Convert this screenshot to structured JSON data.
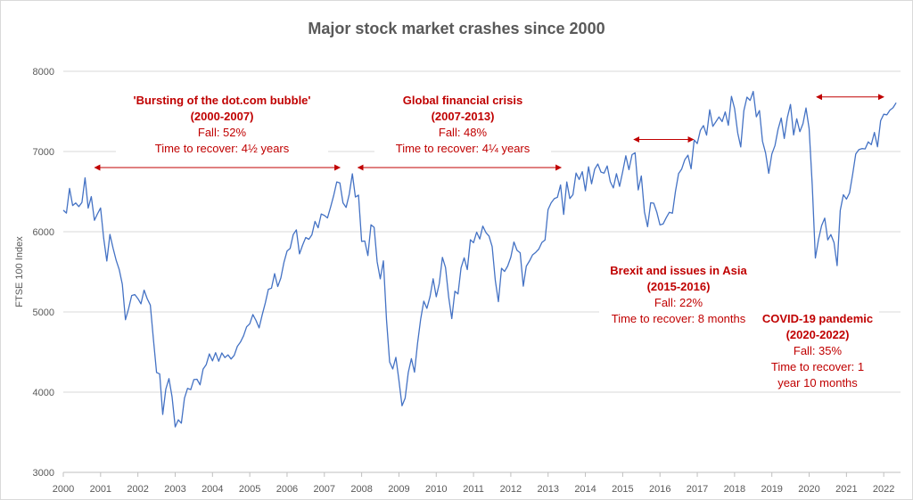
{
  "chart_data": {
    "type": "line",
    "title": "Major stock market crashes since 2000",
    "xlabel": "",
    "ylabel": "FTSE 100 Index",
    "xlim": [
      2000,
      2022.45
    ],
    "ylim": [
      3000,
      8000
    ],
    "yticks": [
      3000,
      4000,
      5000,
      6000,
      7000,
      8000
    ],
    "xticks": [
      "2000",
      "2001",
      "2002",
      "2003",
      "2004",
      "2005",
      "2006",
      "2007",
      "2008",
      "2009",
      "2010",
      "2011",
      "2012",
      "2013",
      "2014",
      "2015",
      "2016",
      "2017",
      "2018",
      "2019",
      "2020",
      "2021",
      "2022"
    ],
    "grid": "horizontal",
    "line_color": "#4472c4",
    "annotation_color": "#c00000",
    "series_start": 2000.0,
    "series_step": "monthly",
    "values": [
      6268,
      6232,
      6540,
      6327,
      6359,
      6313,
      6365,
      6672,
      6294,
      6438,
      6142,
      6222,
      6297,
      5918,
      5634,
      5967,
      5796,
      5643,
      5529,
      5345,
      4903,
      5040,
      5204,
      5217,
      5165,
      5101,
      5272,
      5166,
      5086,
      4656,
      4246,
      4227,
      3722,
      4039,
      4169,
      3940,
      3567,
      3656,
      3613,
      3926,
      4048,
      4031,
      4157,
      4161,
      4091,
      4288,
      4343,
      4477,
      4390,
      4492,
      4386,
      4489,
      4431,
      4464,
      4413,
      4459,
      4571,
      4624,
      4703,
      4814,
      4852,
      4968,
      4894,
      4801,
      4964,
      5113,
      5282,
      5297,
      5478,
      5317,
      5423,
      5619,
      5760,
      5792,
      5965,
      6023,
      5723,
      5833,
      5928,
      5906,
      5961,
      6129,
      6049,
      6221,
      6203,
      6172,
      6308,
      6449,
      6621,
      6608,
      6360,
      6303,
      6467,
      6722,
      6432,
      6457,
      5880,
      5884,
      5702,
      6087,
      6054,
      5626,
      5412,
      5637,
      4902,
      4377,
      4289,
      4434,
      4150,
      3830,
      3926,
      4244,
      4418,
      4249,
      4608,
      4909,
      5134,
      5045,
      5191,
      5413,
      5189,
      5355,
      5680,
      5553,
      5188,
      4917,
      5258,
      5225,
      5549,
      5675,
      5528,
      5900,
      5863,
      5994,
      5909,
      6070,
      5990,
      5946,
      5815,
      5395,
      5128,
      5544,
      5505,
      5572,
      5682,
      5872,
      5768,
      5738,
      5321,
      5571,
      5635,
      5711,
      5742,
      5783,
      5867,
      5898,
      6277,
      6361,
      6412,
      6430,
      6583,
      6215,
      6621,
      6413,
      6462,
      6731,
      6651,
      6749,
      6510,
      6810,
      6598,
      6780,
      6844,
      6744,
      6730,
      6820,
      6623,
      6546,
      6723,
      6566,
      6749,
      6947,
      6773,
      6961,
      6984,
      6521,
      6696,
      6248,
      6062,
      6361,
      6356,
      6242,
      6084,
      6097,
      6175,
      6242,
      6231,
      6504,
      6724,
      6782,
      6899,
      6954,
      6784,
      7143,
      7099,
      7263,
      7323,
      7204,
      7520,
      7313,
      7372,
      7431,
      7373,
      7493,
      7327,
      7688,
      7534,
      7232,
      7057,
      7509,
      7678,
      7637,
      7749,
      7432,
      7510,
      7128,
      6980,
      6728,
      6969,
      7075,
      7279,
      7418,
      7162,
      7426,
      7587,
      7207,
      7408,
      7248,
      7347,
      7542,
      7286,
      6580,
      5672,
      5901,
      6077,
      6170,
      5898,
      5964,
      5866,
      5577,
      6266,
      6461,
      6407,
      6483,
      6714,
      6970,
      7023,
      7037,
      7032,
      7120,
      7086,
      7238,
      7059,
      7385,
      7464,
      7458,
      7516,
      7545,
      7608
    ],
    "recovery_arrows": [
      {
        "from": 2000.84,
        "to": 2007.42,
        "level": 6800
      },
      {
        "from": 2007.9,
        "to": 2013.35,
        "level": 6800
      },
      {
        "from": 2015.3,
        "to": 2016.9,
        "level": 7150
      },
      {
        "from": 2020.2,
        "to": 2022.0,
        "level": 7680
      }
    ],
    "annotations": [
      {
        "name": "'Bursting of the dot.com bubble'",
        "period": "(2000-2007)",
        "fall": "Fall: 52%",
        "recover": "Time to recover: 4½ years"
      },
      {
        "name": "Global financial crisis",
        "period": "(2007-2013)",
        "fall": "Fall: 48%",
        "recover": "Time to recover: 4¼ years"
      },
      {
        "name": "Brexit and issues in Asia",
        "period": "(2015-2016)",
        "fall": "Fall: 22%",
        "recover": "Time to recover: 8 months"
      },
      {
        "name": "COVID-19 pandemic",
        "period": "(2020-2022)",
        "fall": "Fall: 35%",
        "recover": "Time to recover: 1 year 10 months"
      }
    ]
  }
}
